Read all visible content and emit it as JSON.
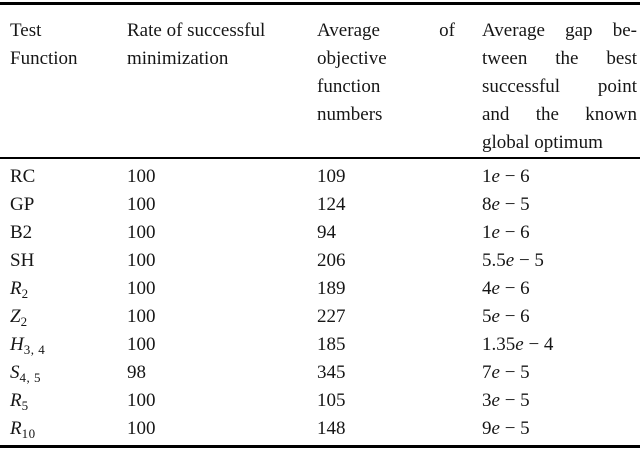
{
  "table": {
    "header": {
      "col1": {
        "lines": [
          "Test",
          "Function"
        ]
      },
      "col2": {
        "lines": [
          "Rate of successful",
          "minimization"
        ]
      },
      "col3": {
        "line1": "Average of",
        "lines_rest": [
          "objective",
          "function",
          "numbers"
        ]
      },
      "col4": {
        "lines": [
          "Average gap be-",
          "tween the best",
          "successful point",
          "and the known",
          "global optimum"
        ]
      }
    },
    "rows": [
      {
        "name_base": "RC",
        "name_sub": "",
        "name_italic": false,
        "rate": "100",
        "avg": "109",
        "gap": "1e − 6"
      },
      {
        "name_base": "GP",
        "name_sub": "",
        "name_italic": false,
        "rate": "100",
        "avg": "124",
        "gap": "8e − 5"
      },
      {
        "name_base": "B2",
        "name_sub": "",
        "name_italic": false,
        "rate": "100",
        "avg": "94",
        "gap": "1e − 6"
      },
      {
        "name_base": "SH",
        "name_sub": "",
        "name_italic": false,
        "rate": "100",
        "avg": "206",
        "gap": "5.5e − 5"
      },
      {
        "name_base": "R",
        "name_sub": "2",
        "name_italic": true,
        "rate": "100",
        "avg": "189",
        "gap": "4e − 6"
      },
      {
        "name_base": "Z",
        "name_sub": "2",
        "name_italic": true,
        "rate": "100",
        "avg": "227",
        "gap": "5e − 6"
      },
      {
        "name_base": "H",
        "name_sub": "3, 4",
        "name_italic": true,
        "rate": "100",
        "avg": "185",
        "gap": "1.35e − 4"
      },
      {
        "name_base": "S",
        "name_sub": "4, 5",
        "name_italic": true,
        "rate": "98",
        "avg": "345",
        "gap": "7e − 5"
      },
      {
        "name_base": "R",
        "name_sub": "5",
        "name_italic": true,
        "rate": "100",
        "avg": "105",
        "gap": "3e − 5"
      },
      {
        "name_base": "R",
        "name_sub": "10",
        "name_italic": true,
        "rate": "100",
        "avg": "148",
        "gap": "9e − 5"
      }
    ],
    "colors": {
      "text": "#161616",
      "rule": "#000000",
      "background": "#ffffff"
    }
  }
}
